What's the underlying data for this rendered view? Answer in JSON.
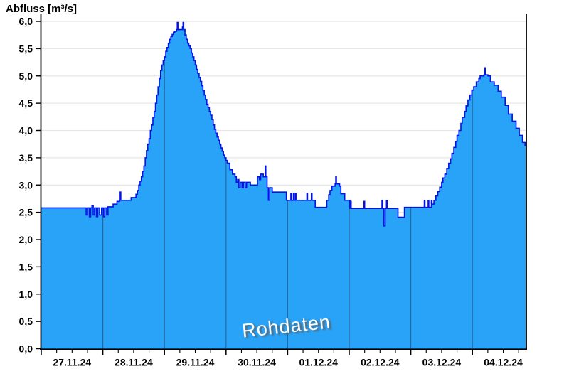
{
  "title": "Abfluss [m³/s]",
  "watermark": "Rohdaten",
  "colors": {
    "background": "#FFFFFF",
    "area_fill": "#29A3F8",
    "curve_line": "#0013E8",
    "grid_horizontal": "#E7E7E7",
    "day_separator": "#27689A",
    "axis": "#000000",
    "label_text": "#000000",
    "watermark_text": "#FFFFFF"
  },
  "y_axis": {
    "tick_labels": [
      "0,0",
      "0,5",
      "1,0",
      "1,5",
      "2,0",
      "2,5",
      "3,0",
      "3,5",
      "4,0",
      "4,5",
      "5,0",
      "5,5",
      "6,0"
    ],
    "tick_values": [
      0,
      0.5,
      1,
      1.5,
      2,
      2.5,
      3,
      3.5,
      4,
      4.5,
      5,
      5.5,
      6
    ]
  },
  "x_axis": {
    "tick_labels": [
      "27.11.24",
      "28.11.24",
      "29.11.24",
      "30.11.24",
      "01.12.24",
      "02.12.24",
      "03.12.24",
      "04.12.24"
    ],
    "label_center_hours": [
      12,
      36,
      60,
      84,
      108,
      132,
      156,
      180
    ],
    "day_boundary_hours": [
      24,
      48,
      72,
      96,
      120,
      144,
      168
    ],
    "minor_tick_interval_hours": 6
  },
  "chart_data": {
    "type": "area",
    "title": "Abfluss [m³/s]",
    "xlabel": "",
    "ylabel": "Abfluss [m³/s]",
    "x_unit": "hours since 27.11.24 00:00",
    "x_range": [
      0,
      189
    ],
    "y_range": [
      0,
      6
    ],
    "grid": true,
    "legend": "none",
    "annotation": "Rohdaten",
    "series_name": "Abfluss Rohdaten",
    "series": [
      [
        0,
        2.58
      ],
      [
        17.5,
        2.45
      ],
      [
        18,
        2.58
      ],
      [
        18.75,
        2.42
      ],
      [
        19.25,
        2.58
      ],
      [
        19.75,
        2.62
      ],
      [
        20.25,
        2.45
      ],
      [
        20.75,
        2.58
      ],
      [
        21.5,
        2.42
      ],
      [
        22,
        2.58
      ],
      [
        22.75,
        2.45
      ],
      [
        23.5,
        2.58
      ],
      [
        24.25,
        2.42
      ],
      [
        24.75,
        2.58
      ],
      [
        25.5,
        2.45
      ],
      [
        26,
        2.6
      ],
      [
        28,
        2.65
      ],
      [
        29.5,
        2.7
      ],
      [
        30.5,
        2.72
      ],
      [
        30.75,
        2.87
      ],
      [
        31,
        2.72
      ],
      [
        35,
        2.77
      ],
      [
        36.9,
        2.83
      ],
      [
        37.5,
        2.9
      ],
      [
        38,
        3.0
      ],
      [
        38.5,
        3.07
      ],
      [
        39,
        3.15
      ],
      [
        39.5,
        3.25
      ],
      [
        40,
        3.35
      ],
      [
        40.5,
        3.5
      ],
      [
        41,
        3.63
      ],
      [
        41.5,
        3.75
      ],
      [
        42,
        3.85
      ],
      [
        42.5,
        4.0
      ],
      [
        43,
        4.1
      ],
      [
        43.5,
        4.24
      ],
      [
        44,
        4.35
      ],
      [
        44.5,
        4.5
      ],
      [
        45,
        4.65
      ],
      [
        45.5,
        4.8
      ],
      [
        46,
        4.95
      ],
      [
        46.5,
        5.1
      ],
      [
        47,
        5.2
      ],
      [
        47.5,
        5.28
      ],
      [
        48,
        5.35
      ],
      [
        48.5,
        5.45
      ],
      [
        49,
        5.52
      ],
      [
        49.5,
        5.6
      ],
      [
        50,
        5.67
      ],
      [
        50.5,
        5.72
      ],
      [
        51,
        5.76
      ],
      [
        51.5,
        5.8
      ],
      [
        52,
        5.82
      ],
      [
        52.75,
        5.85
      ],
      [
        53,
        5.98
      ],
      [
        53.25,
        5.85
      ],
      [
        55,
        5.9
      ],
      [
        55.25,
        5.98
      ],
      [
        55.5,
        5.85
      ],
      [
        56,
        5.75
      ],
      [
        56.5,
        5.67
      ],
      [
        57,
        5.6
      ],
      [
        57.5,
        5.55
      ],
      [
        58,
        5.5
      ],
      [
        58.5,
        5.42
      ],
      [
        59,
        5.35
      ],
      [
        59.5,
        5.28
      ],
      [
        60,
        5.2
      ],
      [
        60.5,
        5.12
      ],
      [
        61,
        5.05
      ],
      [
        61.5,
        4.97
      ],
      [
        62,
        4.9
      ],
      [
        62.5,
        4.82
      ],
      [
        63,
        4.73
      ],
      [
        63.5,
        4.65
      ],
      [
        64,
        4.57
      ],
      [
        64.5,
        4.48
      ],
      [
        65,
        4.42
      ],
      [
        65.5,
        4.35
      ],
      [
        66,
        4.28
      ],
      [
        66.5,
        4.2
      ],
      [
        67,
        4.1
      ],
      [
        67.5,
        4.02
      ],
      [
        68,
        3.95
      ],
      [
        68.5,
        3.88
      ],
      [
        69,
        3.82
      ],
      [
        69.5,
        3.75
      ],
      [
        70,
        3.68
      ],
      [
        70.5,
        3.62
      ],
      [
        71,
        3.55
      ],
      [
        71.5,
        3.5
      ],
      [
        72,
        3.45
      ],
      [
        72.5,
        3.4
      ],
      [
        73.5,
        3.28
      ],
      [
        74.5,
        3.2
      ],
      [
        75.5,
        3.15
      ],
      [
        76,
        3.05
      ],
      [
        76.5,
        3.1
      ],
      [
        77,
        2.95
      ],
      [
        77.5,
        3.05
      ],
      [
        78.25,
        2.95
      ],
      [
        78.75,
        3.05
      ],
      [
        79.5,
        2.95
      ],
      [
        80,
        3.05
      ],
      [
        81.5,
        3.0
      ],
      [
        84.25,
        3.15
      ],
      [
        85,
        3.1
      ],
      [
        85.5,
        3.2
      ],
      [
        86.5,
        3.15
      ],
      [
        87.25,
        3.35
      ],
      [
        87.5,
        3.15
      ],
      [
        88,
        2.95
      ],
      [
        88.5,
        2.72
      ],
      [
        89,
        2.95
      ],
      [
        90,
        2.87
      ],
      [
        95.5,
        2.72
      ],
      [
        97.25,
        2.85
      ],
      [
        97.5,
        2.72
      ],
      [
        98.25,
        2.85
      ],
      [
        98.5,
        2.72
      ],
      [
        99,
        2.85
      ],
      [
        99.25,
        2.72
      ],
      [
        103.5,
        2.85
      ],
      [
        103.75,
        2.72
      ],
      [
        105.25,
        2.85
      ],
      [
        105.5,
        2.72
      ],
      [
        106.75,
        2.59
      ],
      [
        111.25,
        2.72
      ],
      [
        112,
        2.82
      ],
      [
        112.5,
        2.9
      ],
      [
        113.25,
        2.98
      ],
      [
        114.5,
        3.02
      ],
      [
        114.75,
        3.15
      ],
      [
        115,
        3.02
      ],
      [
        116.25,
        2.98
      ],
      [
        116.75,
        2.84
      ],
      [
        118.25,
        2.72
      ],
      [
        120.25,
        2.57
      ],
      [
        120.5,
        2.7
      ],
      [
        120.75,
        2.57
      ],
      [
        125.75,
        2.7
      ],
      [
        126,
        2.57
      ],
      [
        132.75,
        2.72
      ],
      [
        133,
        2.57
      ],
      [
        133.5,
        2.25
      ],
      [
        134,
        2.57
      ],
      [
        134.5,
        2.72
      ],
      [
        134.75,
        2.57
      ],
      [
        139,
        2.41
      ],
      [
        141.5,
        2.59
      ],
      [
        149.25,
        2.72
      ],
      [
        149.5,
        2.59
      ],
      [
        150.75,
        2.72
      ],
      [
        151,
        2.59
      ],
      [
        152,
        2.72
      ],
      [
        152.25,
        2.65
      ],
      [
        153,
        2.72
      ],
      [
        153.75,
        2.8
      ],
      [
        154.5,
        2.88
      ],
      [
        155.25,
        2.96
      ],
      [
        156,
        3.05
      ],
      [
        156.5,
        3.13
      ],
      [
        157.25,
        3.2
      ],
      [
        158,
        3.3
      ],
      [
        158.75,
        3.4
      ],
      [
        159.5,
        3.48
      ],
      [
        160,
        3.58
      ],
      [
        160.75,
        3.69
      ],
      [
        161.5,
        3.8
      ],
      [
        162,
        3.91
      ],
      [
        162.75,
        4.0
      ],
      [
        163.5,
        4.13
      ],
      [
        164,
        4.24
      ],
      [
        165,
        4.35
      ],
      [
        165.5,
        4.45
      ],
      [
        166.25,
        4.56
      ],
      [
        167,
        4.65
      ],
      [
        167.75,
        4.74
      ],
      [
        168.5,
        4.8
      ],
      [
        169.5,
        4.89
      ],
      [
        170.5,
        4.95
      ],
      [
        171,
        5.0
      ],
      [
        172.5,
        5.02
      ],
      [
        172.75,
        5.15
      ],
      [
        173,
        5.02
      ],
      [
        174,
        5.0
      ],
      [
        175,
        4.89
      ],
      [
        176.5,
        4.83
      ],
      [
        178,
        4.72
      ],
      [
        179.25,
        4.61
      ],
      [
        180.75,
        4.46
      ],
      [
        182,
        4.3
      ],
      [
        183.5,
        4.17
      ],
      [
        185,
        4.04
      ],
      [
        186.25,
        3.91
      ],
      [
        187.5,
        3.78
      ],
      [
        188.5,
        3.72
      ]
    ]
  }
}
